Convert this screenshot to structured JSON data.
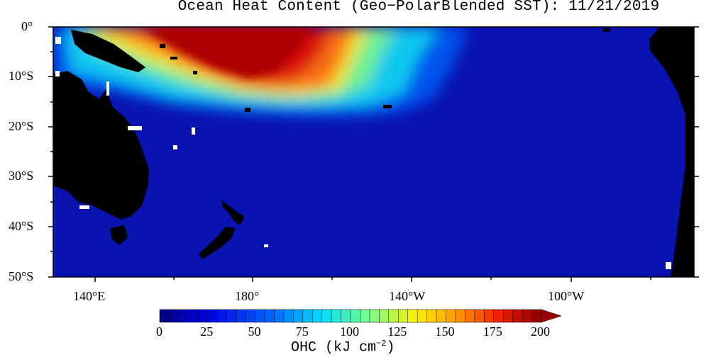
{
  "title": "Ocean Heat Content (Geo−PolarBlended SST): 11/21/2019",
  "map": {
    "lat_labels": [
      "0°",
      "10°S",
      "20°S",
      "30°S",
      "40°S",
      "50°S"
    ],
    "lon_labels": [
      "140°E",
      "180°",
      "140°W",
      "100°W"
    ],
    "land_color": "#000000",
    "ocean_base_color": "#0a14b4"
  },
  "colorbar": {
    "ticks": [
      "0",
      "25",
      "50",
      "75",
      "100",
      "125",
      "150",
      "175",
      "200"
    ],
    "label": "OHC (kJ cm",
    "label_exp": "−2",
    "label_end": ")"
  }
}
